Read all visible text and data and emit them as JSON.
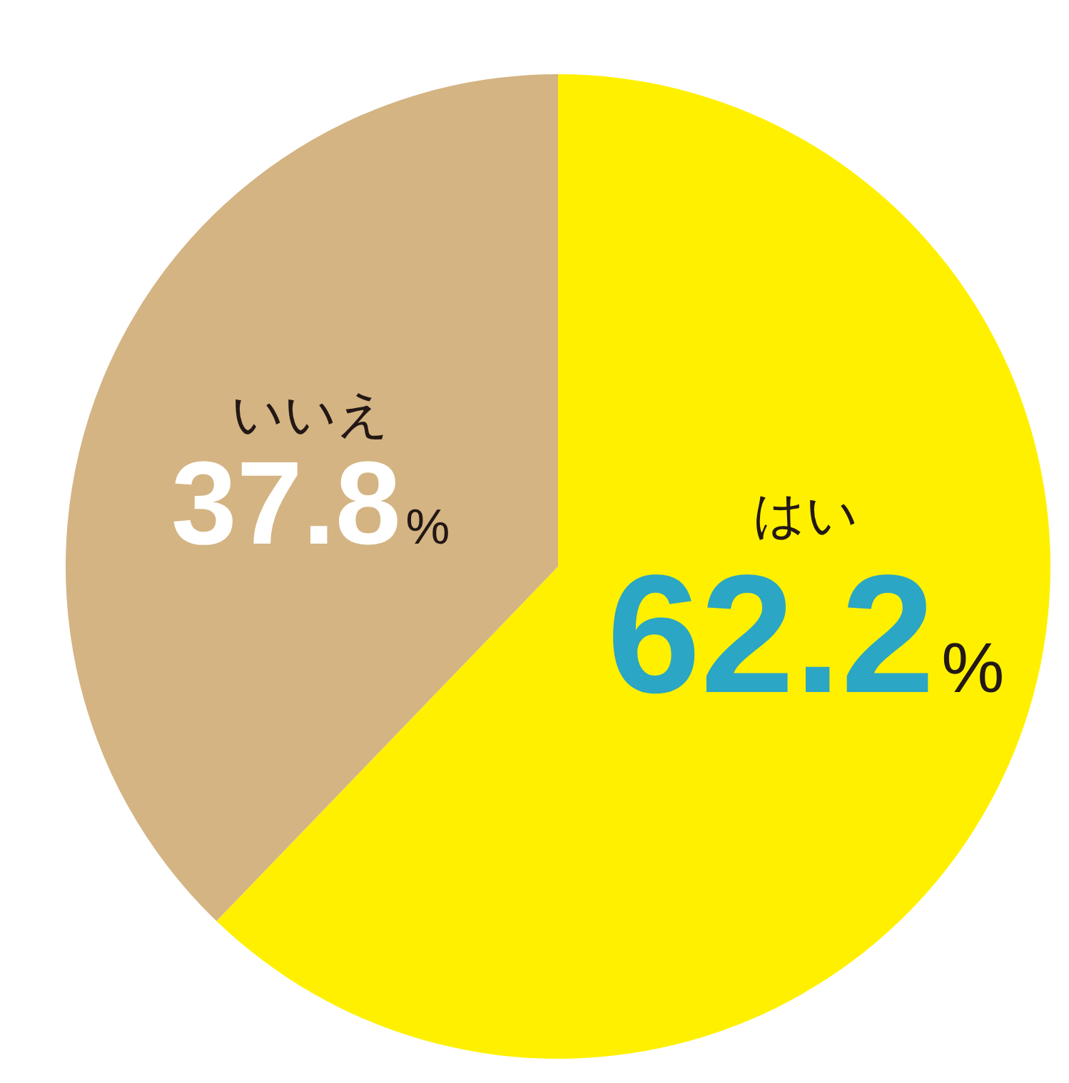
{
  "chart_data": {
    "type": "pie",
    "categories": [
      "はい",
      "いいえ"
    ],
    "values": [
      62.2,
      37.8
    ],
    "colors": [
      "#fff000",
      "#d4b483"
    ],
    "value_labels": [
      "62.2%",
      "37.8%"
    ]
  }
}
